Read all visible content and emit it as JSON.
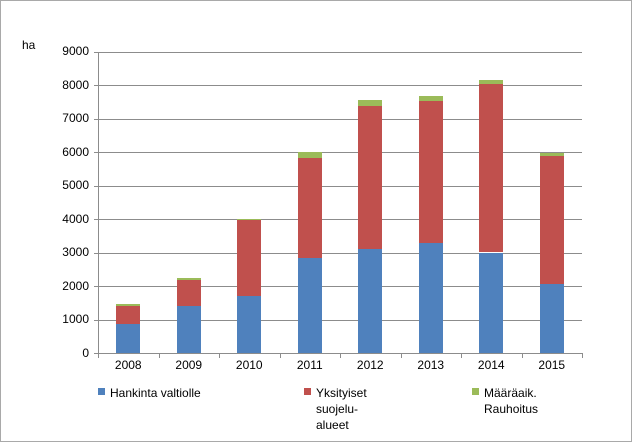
{
  "chart_data": {
    "type": "bar",
    "stacked": true,
    "title": "",
    "xlabel": "",
    "ylabel": "ha",
    "categories": [
      "2008",
      "2009",
      "2010",
      "2011",
      "2012",
      "2013",
      "2014",
      "2015"
    ],
    "series": [
      {
        "name": "Hankinta valtiolle",
        "legend_lines": [
          "Hankinta valtiolle"
        ],
        "color": "#4F81BD",
        "values": [
          870,
          1390,
          1690,
          2850,
          3100,
          3280,
          3000,
          2070
        ]
      },
      {
        "name": "Yksityiset suojelu-alueet",
        "legend_lines": [
          "Yksityiset",
          "suojelu-",
          "alueet"
        ],
        "color": "#C0504D",
        "values": [
          540,
          800,
          2270,
          2970,
          4270,
          4240,
          5020,
          3820
        ]
      },
      {
        "name": "Määräaik. Rauhoitus",
        "legend_lines": [
          "Määräaik.",
          "Rauhoitus"
        ],
        "color": "#9BBB59",
        "values": [
          40,
          55,
          50,
          170,
          180,
          150,
          130,
          80
        ]
      }
    ],
    "ylim": [
      0,
      9000
    ],
    "yticks": [
      0,
      1000,
      2000,
      3000,
      4000,
      5000,
      6000,
      7000,
      8000,
      9000
    ],
    "grid": true,
    "legend_position": "bottom"
  },
  "colors": {
    "background": "#FFFFFF",
    "border": "#A9A9A9",
    "gridline": "#8C8C8C",
    "axis": "#8C8C8C",
    "text": "#000000"
  }
}
